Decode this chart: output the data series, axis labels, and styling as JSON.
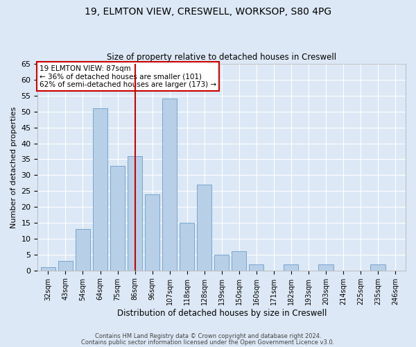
{
  "title_line1": "19, ELMTON VIEW, CRESWELL, WORKSOP, S80 4PG",
  "title_line2": "Size of property relative to detached houses in Creswell",
  "xlabel": "Distribution of detached houses by size in Creswell",
  "ylabel": "Number of detached properties",
  "categories": [
    "32sqm",
    "43sqm",
    "54sqm",
    "64sqm",
    "75sqm",
    "86sqm",
    "96sqm",
    "107sqm",
    "118sqm",
    "128sqm",
    "139sqm",
    "150sqm",
    "160sqm",
    "171sqm",
    "182sqm",
    "193sqm",
    "203sqm",
    "214sqm",
    "225sqm",
    "235sqm",
    "246sqm"
  ],
  "values": [
    1,
    3,
    13,
    51,
    33,
    36,
    24,
    54,
    15,
    27,
    5,
    6,
    2,
    0,
    2,
    0,
    2,
    0,
    0,
    2,
    0
  ],
  "bar_color": "#b8cfe8",
  "bar_edge_color": "#6a9cc8",
  "reference_line_x": 5,
  "reference_line_color": "#cc0000",
  "annotation_text": "19 ELMTON VIEW: 87sqm\n← 36% of detached houses are smaller (101)\n62% of semi-detached houses are larger (173) →",
  "annotation_box_color": "#ffffff",
  "annotation_box_edge_color": "#cc0000",
  "ylim": [
    0,
    65
  ],
  "yticks": [
    0,
    5,
    10,
    15,
    20,
    25,
    30,
    35,
    40,
    45,
    50,
    55,
    60,
    65
  ],
  "footer_line1": "Contains HM Land Registry data © Crown copyright and database right 2024.",
  "footer_line2": "Contains public sector information licensed under the Open Government Licence v3.0.",
  "background_color": "#dce8f5",
  "plot_background_color": "#dce8f5",
  "grid_color": "#ffffff"
}
